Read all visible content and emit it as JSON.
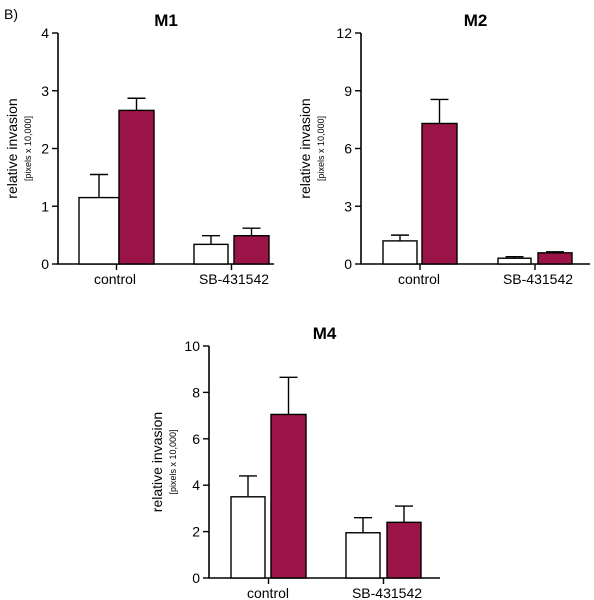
{
  "panel_label": "B)",
  "colors": {
    "control_fill": "#ffffff",
    "treated_fill": "#9a1447",
    "stroke": "#000000"
  },
  "chart_data": [
    {
      "type": "bar",
      "title": "M1",
      "ylabel": "relative invasion",
      "ylabel_unit": "[pixels x 10,000]",
      "categories": [
        "control",
        "SB-431542"
      ],
      "ylim": [
        0,
        4
      ],
      "yticks": [
        0,
        1,
        2,
        3,
        4
      ],
      "series": [
        {
          "fill": "#ffffff",
          "values": [
            1.15,
            0.34
          ],
          "errors": [
            0.4,
            0.15
          ]
        },
        {
          "fill": "#9a1447",
          "values": [
            2.66,
            0.49
          ],
          "errors": [
            0.21,
            0.13
          ]
        }
      ]
    },
    {
      "type": "bar",
      "title": "M2",
      "ylabel": "relative invasion",
      "ylabel_unit": "[pixels x 10,000]",
      "categories": [
        "control",
        "SB-431542"
      ],
      "ylim": [
        0,
        12
      ],
      "yticks": [
        0,
        3,
        6,
        9,
        12
      ],
      "series": [
        {
          "fill": "#ffffff",
          "values": [
            1.2,
            0.3
          ],
          "errors": [
            0.3,
            0.08
          ]
        },
        {
          "fill": "#9a1447",
          "values": [
            7.3,
            0.58
          ],
          "errors": [
            1.25,
            0.05
          ]
        }
      ]
    },
    {
      "type": "bar",
      "title": "M4",
      "ylabel": "relative invasion",
      "ylabel_unit": "[pixels x 10,000]",
      "categories": [
        "control",
        "SB-431542"
      ],
      "ylim": [
        0,
        10
      ],
      "yticks": [
        0,
        2,
        4,
        6,
        8,
        10
      ],
      "series": [
        {
          "fill": "#ffffff",
          "values": [
            3.5,
            1.95
          ],
          "errors": [
            0.9,
            0.65
          ]
        },
        {
          "fill": "#9a1447",
          "values": [
            7.05,
            2.4
          ],
          "errors": [
            1.6,
            0.7
          ]
        }
      ]
    }
  ]
}
